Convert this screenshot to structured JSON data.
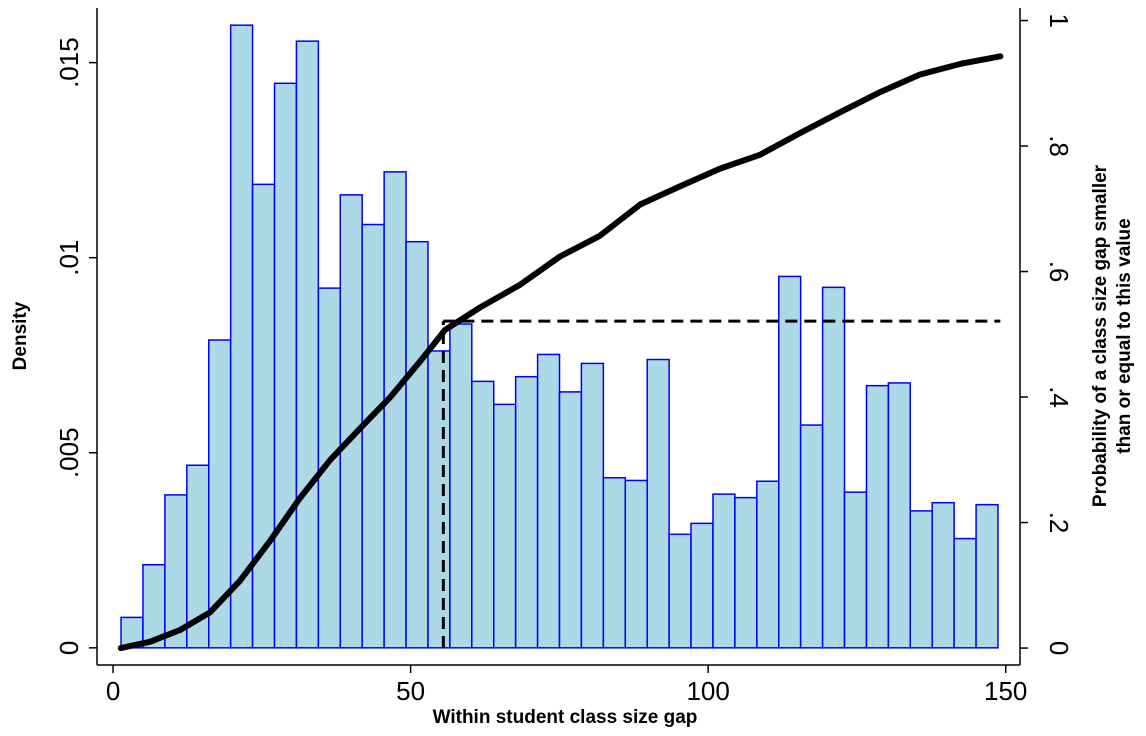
{
  "chart_data": {
    "type": "histogram",
    "xlabel": "Within student class size gap",
    "ylabel": "Density",
    "y2label": [
      "Probability of a class size gap smaller",
      "than or equal to this value"
    ],
    "xlim": [
      -2.7,
      152.4
    ],
    "xticks": [
      0,
      50,
      100,
      150
    ],
    "ylim": [
      -0.00044,
      0.0164
    ],
    "yticks": [
      0,
      {
        "value": 0.005,
        "label": ".005"
      },
      {
        "value": 0.01,
        "label": ".01"
      },
      {
        "value": 0.015,
        "label": ".015"
      }
    ],
    "y2lim": [
      -0.027,
      1.02
    ],
    "y2ticks": [
      0,
      {
        "value": 0.2,
        "label": ".2"
      },
      {
        "value": 0.4,
        "label": ".4"
      },
      {
        "value": 0.6,
        "label": ".6"
      },
      {
        "value": 0.8,
        "label": ".8"
      },
      1
    ],
    "bins": [
      1.34,
      5.02,
      8.71,
      12.39,
      16.08,
      19.76,
      23.44,
      27.13,
      30.81,
      34.5,
      38.18,
      41.86,
      45.55,
      49.23,
      52.92,
      56.6,
      60.28,
      63.97,
      67.65,
      71.34,
      75.02,
      78.7,
      82.39,
      86.07,
      89.76,
      93.44,
      97.12,
      100.81,
      104.49,
      108.18,
      111.86,
      115.54,
      119.23,
      122.91,
      126.6,
      130.28,
      133.96,
      137.65,
      141.33,
      145.02,
      148.7
    ],
    "values": [
      0.00078,
      0.00213,
      0.00392,
      0.00468,
      0.00789,
      0.01596,
      0.01188,
      0.01447,
      0.01555,
      0.00922,
      0.01161,
      0.01085,
      0.0122,
      0.01041,
      0.00761,
      0.0083,
      0.00683,
      0.00624,
      0.00695,
      0.00752,
      0.00656,
      0.00729,
      0.00436,
      0.00429,
      0.00739,
      0.00291,
      0.00319,
      0.00394,
      0.00385,
      0.00427,
      0.00952,
      0.00571,
      0.00924,
      0.00399,
      0.00672,
      0.00679,
      0.00351,
      0.00372,
      0.0028,
      0.00367
    ],
    "color": "#add8e6",
    "edgecolor": "#0000ff",
    "cdf": {
      "color": "#000000",
      "axis": "y2",
      "x": [
        1.3,
        6.2,
        11.3,
        16.3,
        21.3,
        26.4,
        31.4,
        36.5,
        41.5,
        46.6,
        51.6,
        55.8,
        61.7,
        68.4,
        75.1,
        81.8,
        88.6,
        95.3,
        102,
        108.7,
        115.5,
        122.2,
        128.9,
        135.6,
        142.4,
        149.1
      ],
      "values": [
        0,
        0.01,
        0.029,
        0.057,
        0.107,
        0.171,
        0.239,
        0.3,
        0.35,
        0.4,
        0.457,
        0.507,
        0.543,
        0.579,
        0.624,
        0.657,
        0.707,
        0.736,
        0.764,
        0.786,
        0.821,
        0.854,
        0.886,
        0.914,
        0.931,
        0.943
      ]
    },
    "reference": {
      "x": 55.5,
      "y2": 0.521
    }
  }
}
